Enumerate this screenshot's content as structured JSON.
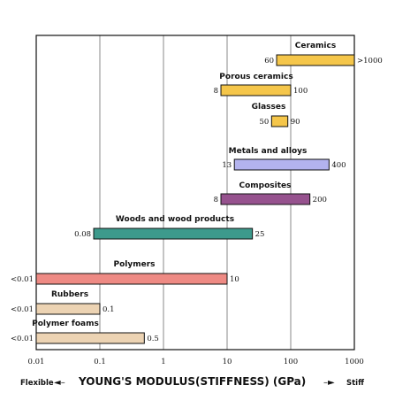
{
  "chart_data": {
    "type": "bar",
    "orientation": "horizontal-range",
    "xscale": "log",
    "xlim": [
      0.01,
      1000
    ],
    "xticks": [
      "0.01",
      "0.1",
      "1",
      "10",
      "100",
      "1000"
    ],
    "grid": true,
    "xlabel": "YOUNG'S MODULUS(STIFFNESS) (GPa)",
    "xlabel_left": "Flexible",
    "xlabel_right": "Stiff",
    "categories": [
      {
        "name": "Ceramics",
        "min": 60,
        "max": 1000,
        "min_label": "60",
        "max_label": ">1000",
        "color": "#f5c64a"
      },
      {
        "name": "Porous ceramics",
        "min": 8,
        "max": 100,
        "min_label": "8",
        "max_label": "100",
        "color": "#f5c64a"
      },
      {
        "name": "Glasses",
        "min": 50,
        "max": 90,
        "min_label": "50",
        "max_label": "90",
        "color": "#f5c64a"
      },
      {
        "name": "Metals and alloys",
        "min": 13,
        "max": 400,
        "min_label": "13",
        "max_label": "400",
        "color": "#b3b3ee"
      },
      {
        "name": "Composites",
        "min": 8,
        "max": 200,
        "min_label": "8",
        "max_label": "200",
        "color": "#96528e"
      },
      {
        "name": "Woods and wood products",
        "min": 0.08,
        "max": 25,
        "min_label": "0.08",
        "max_label": "25",
        "color": "#3d9a8c"
      },
      {
        "name": "Polymers",
        "min": 0.01,
        "max": 10,
        "min_label": "<0.01",
        "max_label": "10",
        "color": "#ee8a84"
      },
      {
        "name": "Rubbers",
        "min": 0.01,
        "max": 0.1,
        "min_label": "<0.01",
        "max_label": "0.1",
        "color": "#ecd3b3"
      },
      {
        "name": "Polymer foams",
        "min": 0.01,
        "max": 0.5,
        "min_label": "<0.01",
        "max_label": "0.5",
        "color": "#ecd3b3"
      }
    ]
  }
}
